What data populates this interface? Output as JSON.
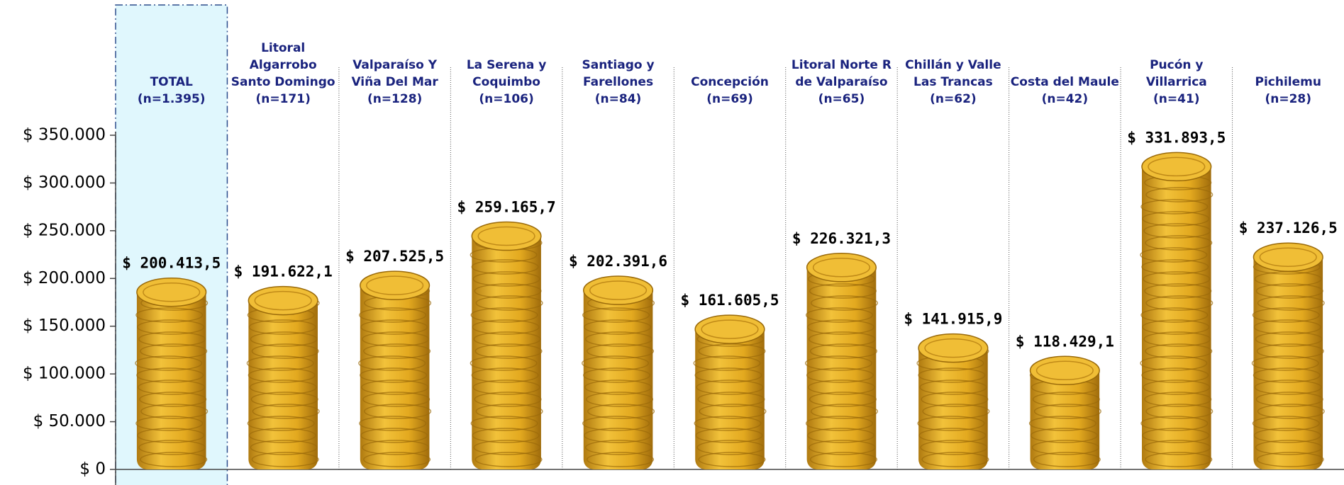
{
  "chart_data": {
    "type": "bar",
    "categories": [
      "TOTAL\n(n=1.395)",
      "Litoral\nAlgarrobo\nSanto Domingo\n(n=171)",
      "Valparaíso Y\nViña Del Mar\n(n=128)",
      "La Serena y\nCoquimbo\n(n=106)",
      "Santiago y\nFarellones\n(n=84)",
      "Concepción\n(n=69)",
      "Litoral Norte R\nde Valparaíso\n(n=65)",
      "Chillán y Valle\nLas Trancas\n(n=62)",
      "Costa del Maule\n(n=42)",
      "Pucón y\nVillarrica\n(n=41)",
      "Pichilemu\n(n=28)"
    ],
    "values": [
      200413.5,
      191622.1,
      207525.5,
      259165.7,
      202391.6,
      161605.5,
      226321.3,
      141915.9,
      118429.1,
      331893.5,
      237126.5
    ],
    "value_labels": [
      "$ 200.413,5",
      "$ 191.622,1",
      "$ 207.525,5",
      "$ 259.165,7",
      "$ 202.391,6",
      "$ 161.605,5",
      "$ 226.321,3",
      "$ 141.915,9",
      "$ 118.429,1",
      "$ 331.893,5",
      "$ 237.126,5"
    ],
    "color": "#e0a81e",
    "ylim": [
      0,
      350000
    ],
    "yticks": [
      {
        "value": 0,
        "label": "$ 0"
      },
      {
        "value": 50000,
        "label": "$ 50.000"
      },
      {
        "value": 100000,
        "label": "$ 100.000"
      },
      {
        "value": 150000,
        "label": "$ 150.000"
      },
      {
        "value": 200000,
        "label": "$ 200.000"
      },
      {
        "value": 250000,
        "label": "$ 250.000"
      },
      {
        "value": 300000,
        "label": "$ 300.000"
      },
      {
        "value": 350000,
        "label": "$ 350.000"
      }
    ]
  }
}
